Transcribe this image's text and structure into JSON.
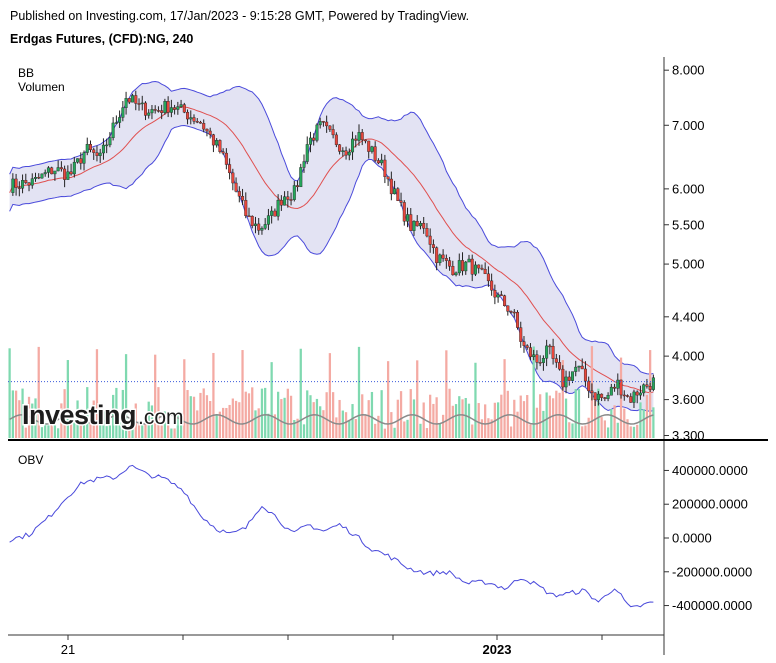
{
  "header": {
    "published": "Published on Investing.com, 17/Jan/2023 - 9:15:28 GMT, Powered by TradingView.",
    "instrument": "Erdgas Futures, (CFD):NG, 240"
  },
  "watermark": {
    "brand": "Investing",
    "suffix": ".com"
  },
  "colors": {
    "up": "#26a65b",
    "down": "#e8463c",
    "wick": "#222222",
    "bb_band": "#4a4adb",
    "bb_fill": "#e3e3f3",
    "bb_basis": "#e05050",
    "vol_up": "#7fd9b0",
    "vol_down": "#f4aaa3",
    "vol_ma": "#8a8a8a",
    "obv": "#4a4adb",
    "price_line": "#3b5bdb"
  },
  "chart_data": [
    {
      "type": "candlestick",
      "title": "",
      "legend": [
        "BB",
        "Volumen"
      ],
      "y_scale": "log",
      "ylim": [
        3.28,
        8.2
      ],
      "yticks": [
        "8.000",
        "7.000",
        "6.000",
        "5.500",
        "5.000",
        "4.400",
        "4.000",
        "3.600",
        "3.300"
      ],
      "xticks": [
        "21",
        "2023"
      ],
      "last_price_line": 3.76,
      "close_path": [
        [
          0,
          6.05
        ],
        [
          12,
          6.1
        ],
        [
          22,
          6.3
        ],
        [
          30,
          6.2
        ],
        [
          38,
          6.6
        ],
        [
          45,
          6.45
        ],
        [
          52,
          7.0
        ],
        [
          58,
          7.5
        ],
        [
          65,
          7.3
        ],
        [
          72,
          7.25
        ],
        [
          80,
          7.35
        ],
        [
          88,
          7.2
        ],
        [
          95,
          7.05
        ],
        [
          105,
          6.55
        ],
        [
          112,
          6.0
        ],
        [
          118,
          5.6
        ],
        [
          124,
          5.45
        ],
        [
          130,
          5.6
        ],
        [
          136,
          5.9
        ],
        [
          142,
          5.95
        ],
        [
          148,
          6.7
        ],
        [
          155,
          7.0
        ],
        [
          160,
          6.8
        ],
        [
          167,
          6.6
        ],
        [
          173,
          6.85
        ],
        [
          178,
          6.65
        ],
        [
          186,
          6.3
        ],
        [
          193,
          5.8
        ],
        [
          200,
          5.45
        ],
        [
          206,
          5.5
        ],
        [
          212,
          5.1
        ],
        [
          220,
          4.95
        ],
        [
          228,
          5.0
        ],
        [
          235,
          4.85
        ],
        [
          243,
          4.6
        ],
        [
          250,
          4.45
        ],
        [
          255,
          4.1
        ],
        [
          262,
          3.95
        ],
        [
          268,
          4.05
        ],
        [
          275,
          3.75
        ],
        [
          282,
          3.9
        ],
        [
          290,
          3.65
        ],
        [
          296,
          3.6
        ],
        [
          302,
          3.75
        ],
        [
          308,
          3.6
        ],
        [
          314,
          3.7
        ],
        [
          320,
          3.76
        ]
      ],
      "volume_ma_level": 0.2
    },
    {
      "type": "line",
      "title": "",
      "series": [
        {
          "name": "OBV"
        }
      ],
      "ylim": [
        -450000,
        450000
      ],
      "yticks": [
        "400000.0000",
        "200000.0000",
        "0.0000",
        "-200000.0000",
        "-400000.0000"
      ],
      "path": [
        [
          0,
          -10000
        ],
        [
          10,
          20000
        ],
        [
          20,
          120000
        ],
        [
          30,
          250000
        ],
        [
          38,
          330000
        ],
        [
          46,
          350000
        ],
        [
          55,
          360000
        ],
        [
          62,
          430000
        ],
        [
          70,
          380000
        ],
        [
          80,
          350000
        ],
        [
          90,
          280000
        ],
        [
          98,
          140000
        ],
        [
          106,
          60000
        ],
        [
          114,
          20000
        ],
        [
          122,
          60000
        ],
        [
          130,
          200000
        ],
        [
          138,
          120000
        ],
        [
          146,
          20000
        ],
        [
          154,
          80000
        ],
        [
          162,
          40000
        ],
        [
          170,
          80000
        ],
        [
          178,
          20000
        ],
        [
          186,
          -60000
        ],
        [
          196,
          -110000
        ],
        [
          206,
          -180000
        ],
        [
          216,
          -210000
        ],
        [
          226,
          -200000
        ],
        [
          236,
          -270000
        ],
        [
          246,
          -260000
        ],
        [
          256,
          -300000
        ],
        [
          264,
          -230000
        ],
        [
          272,
          -280000
        ],
        [
          280,
          -340000
        ],
        [
          288,
          -330000
        ],
        [
          296,
          -310000
        ],
        [
          304,
          -380000
        ],
        [
          312,
          -290000
        ],
        [
          320,
          -420000
        ],
        [
          332,
          -380000
        ]
      ]
    }
  ]
}
